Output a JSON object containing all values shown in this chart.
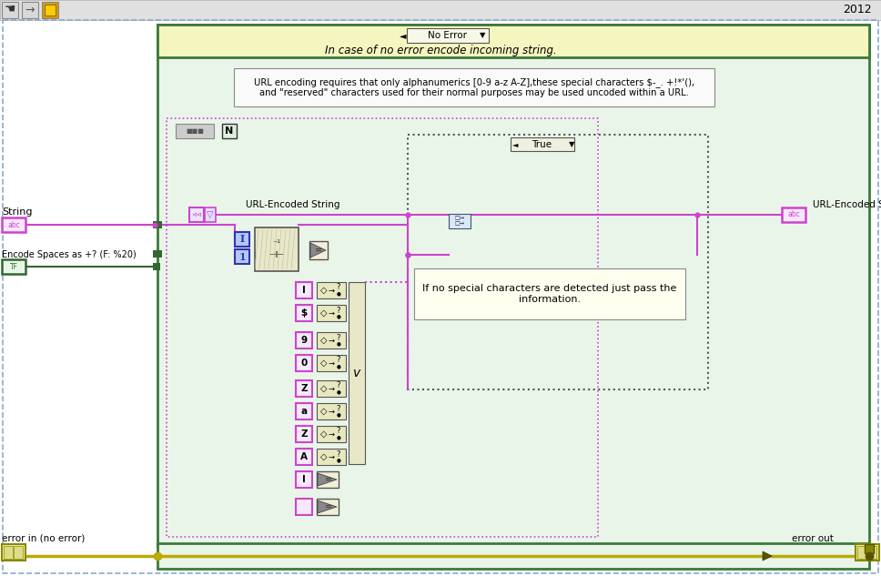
{
  "bg_color": "#ffffff",
  "toolbar_color": "#e0e0e0",
  "year": "2012",
  "outer_dash_color": "#88aadd",
  "main_green_border": "#3a7a3a",
  "main_green_fill": "#eaf5ea",
  "header_fill": "#f5f5c0",
  "inner_case_fill": "#f8f8f0",
  "inner_case_border": "#555555",
  "wire_pink": "#cc44cc",
  "wire_green": "#336633",
  "wire_yellow": "#bbaa00",
  "block_fill_beige": "#e8e8c8",
  "block_fill_blue": "#d0d8f8",
  "block_fill_purple": "#d8c8f8",
  "block_fill_light": "#f0f0e0",
  "block_fill_select": "#e8e8c8",
  "str_terminal_fill": "#f8e8ff",
  "tf_terminal_fill": "#e8f8e8",
  "error_terminal_fill": "#f0f0a0",
  "note_text": "URL encoding requires that only alphanumerics [0-9 a-z A-Z],these special characters $-_. +!*'(),\nand \"reserved\" characters used for their normal purposes may be used uncoded within a URL.",
  "pass_text": "If no special characters are detected just pass the\ninformation.",
  "case_subtext": "In case of no error encode incoming string.",
  "label_no_error": "No Error",
  "label_true": "True",
  "label_string": "String",
  "label_encode": "Encode Spaces as +? (F: %20)",
  "label_error_in": "error in (no error)",
  "label_error_out": "error out",
  "label_url_left": "URL-Encoded String",
  "label_url_right": "URL-Encoded String",
  "char_labels": [
    "I",
    "$",
    "9",
    "0",
    "Z",
    "a",
    "Z",
    "A"
  ]
}
